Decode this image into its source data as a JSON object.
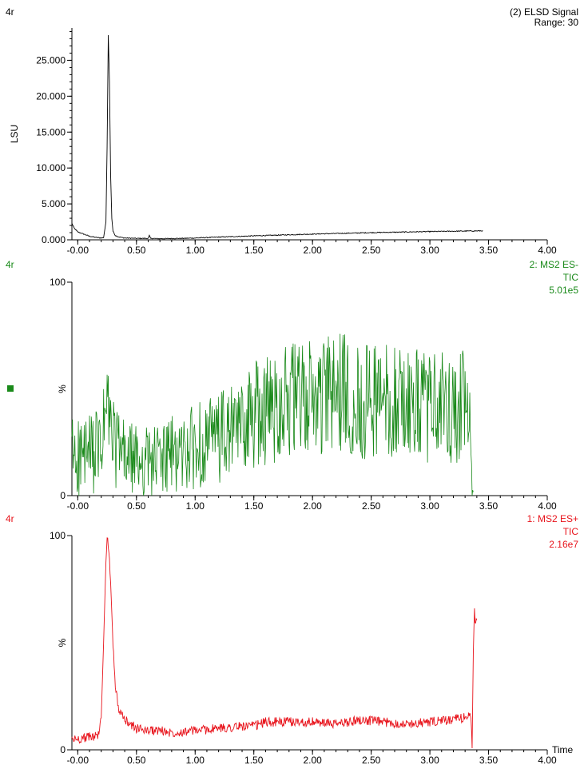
{
  "chart_data": [
    {
      "type": "line",
      "sample_label": "4r",
      "trace_label_lines": [
        "(2) ELSD Signal",
        "Range: 30"
      ],
      "ylabel": "LSU",
      "xlabel": "",
      "xlim": [
        -0.05,
        4.0
      ],
      "ylim": [
        0,
        29500
      ],
      "x_ticks": [
        -0.0,
        0.5,
        1.0,
        1.5,
        2.0,
        2.5,
        3.0,
        3.5,
        4.0
      ],
      "x_tick_labels": [
        "-0.00",
        "0.50",
        "1.00",
        "1.50",
        "2.00",
        "2.50",
        "3.00",
        "3.50",
        "4.00"
      ],
      "y_ticks": [
        0,
        5000,
        10000,
        15000,
        20000,
        25000
      ],
      "y_tick_labels": [
        "0.000",
        "5.000",
        "10.000",
        "15.000",
        "20.000",
        "25.000"
      ],
      "color": "#000000",
      "series": [
        {
          "x": [
            -0.05,
            -0.03,
            0.0,
            0.05,
            0.1,
            0.15,
            0.2,
            0.22,
            0.24,
            0.25,
            0.26,
            0.27,
            0.28,
            0.29,
            0.3,
            0.32,
            0.35,
            0.4,
            0.5,
            0.6,
            0.61,
            0.62,
            0.7,
            0.8,
            0.9,
            1.0,
            1.2,
            1.5,
            1.7,
            2.0,
            2.5,
            3.0,
            3.2,
            3.45
          ],
          "y": [
            2300,
            1600,
            1100,
            800,
            500,
            350,
            250,
            300,
            2500,
            13000,
            28500,
            22000,
            9000,
            3000,
            1200,
            600,
            400,
            250,
            200,
            200,
            600,
            200,
            150,
            180,
            200,
            250,
            380,
            550,
            650,
            800,
            1000,
            1150,
            1200,
            1250
          ]
        }
      ]
    },
    {
      "type": "line",
      "sample_label": "4r",
      "trace_label_lines": [
        "2: MS2 ES-",
        "TIC",
        "5.01e5"
      ],
      "ylabel": "%",
      "xlabel": "",
      "xlim": [
        -0.05,
        4.0
      ],
      "ylim": [
        0,
        100
      ],
      "x_ticks": [
        -0.0,
        0.5,
        1.0,
        1.5,
        2.0,
        2.5,
        3.0,
        3.5,
        4.0
      ],
      "x_tick_labels": [
        "-0.00",
        "0.50",
        "1.00",
        "1.50",
        "2.00",
        "2.50",
        "3.00",
        "3.50",
        "4.00"
      ],
      "y_ticks": [
        0,
        100
      ],
      "y_tick_labels": [
        "0",
        "100"
      ],
      "color": "#1a8a1a",
      "series": [
        {
          "x": [
            -0.05,
            0.0,
            0.1,
            0.2,
            0.25,
            0.27,
            0.3,
            0.4,
            0.5,
            0.6,
            0.7,
            0.8,
            0.9,
            1.0,
            1.1,
            1.2,
            1.3,
            1.4,
            1.5,
            1.6,
            1.7,
            1.75,
            1.8,
            1.9,
            2.0,
            2.1,
            2.2,
            2.3,
            2.4,
            2.5,
            2.6,
            2.7,
            2.8,
            2.9,
            3.0,
            3.1,
            3.2,
            3.28,
            3.35,
            3.36,
            3.37
          ],
          "y": [
            20,
            18,
            19,
            22,
            42,
            35,
            25,
            18,
            16,
            16,
            17,
            19,
            20,
            23,
            25,
            27,
            29,
            33,
            38,
            40,
            42,
            48,
            45,
            44,
            46,
            46,
            48,
            47,
            44,
            45,
            45,
            44,
            43,
            42,
            42,
            41,
            40,
            42,
            30,
            0,
            0
          ]
        }
      ]
    },
    {
      "type": "line",
      "sample_label": "4r",
      "trace_label_lines": [
        "1: MS2 ES+",
        "TIC",
        "2.16e7"
      ],
      "ylabel": "%",
      "xlabel": "Time",
      "xlim": [
        -0.05,
        4.0
      ],
      "ylim": [
        0,
        100
      ],
      "x_ticks": [
        -0.0,
        0.5,
        1.0,
        1.5,
        2.0,
        2.5,
        3.0,
        3.5,
        4.0
      ],
      "x_tick_labels": [
        "-0.00",
        "0.50",
        "1.00",
        "1.50",
        "2.00",
        "2.50",
        "3.00",
        "3.50",
        "4.00"
      ],
      "y_ticks": [
        0,
        100
      ],
      "y_tick_labels": [
        "0",
        "100"
      ],
      "color": "#e8141c",
      "series": [
        {
          "x": [
            -0.05,
            0.0,
            0.1,
            0.18,
            0.2,
            0.22,
            0.24,
            0.25,
            0.26,
            0.27,
            0.28,
            0.3,
            0.32,
            0.34,
            0.36,
            0.4,
            0.45,
            0.5,
            0.6,
            0.7,
            0.8,
            1.0,
            1.2,
            1.4,
            1.5,
            1.6,
            1.8,
            2.0,
            2.2,
            2.4,
            2.6,
            2.8,
            3.0,
            3.2,
            3.35,
            3.36,
            3.37,
            3.38,
            3.39,
            3.4
          ],
          "y": [
            5,
            5,
            6,
            7,
            15,
            50,
            88,
            100,
            95,
            90,
            78,
            50,
            30,
            22,
            17,
            14,
            12,
            10,
            9,
            9,
            8,
            9,
            10,
            11,
            11,
            13,
            13,
            13,
            12,
            14,
            13,
            12,
            13,
            14,
            16,
            2,
            45,
            65,
            58,
            60
          ]
        }
      ]
    }
  ]
}
